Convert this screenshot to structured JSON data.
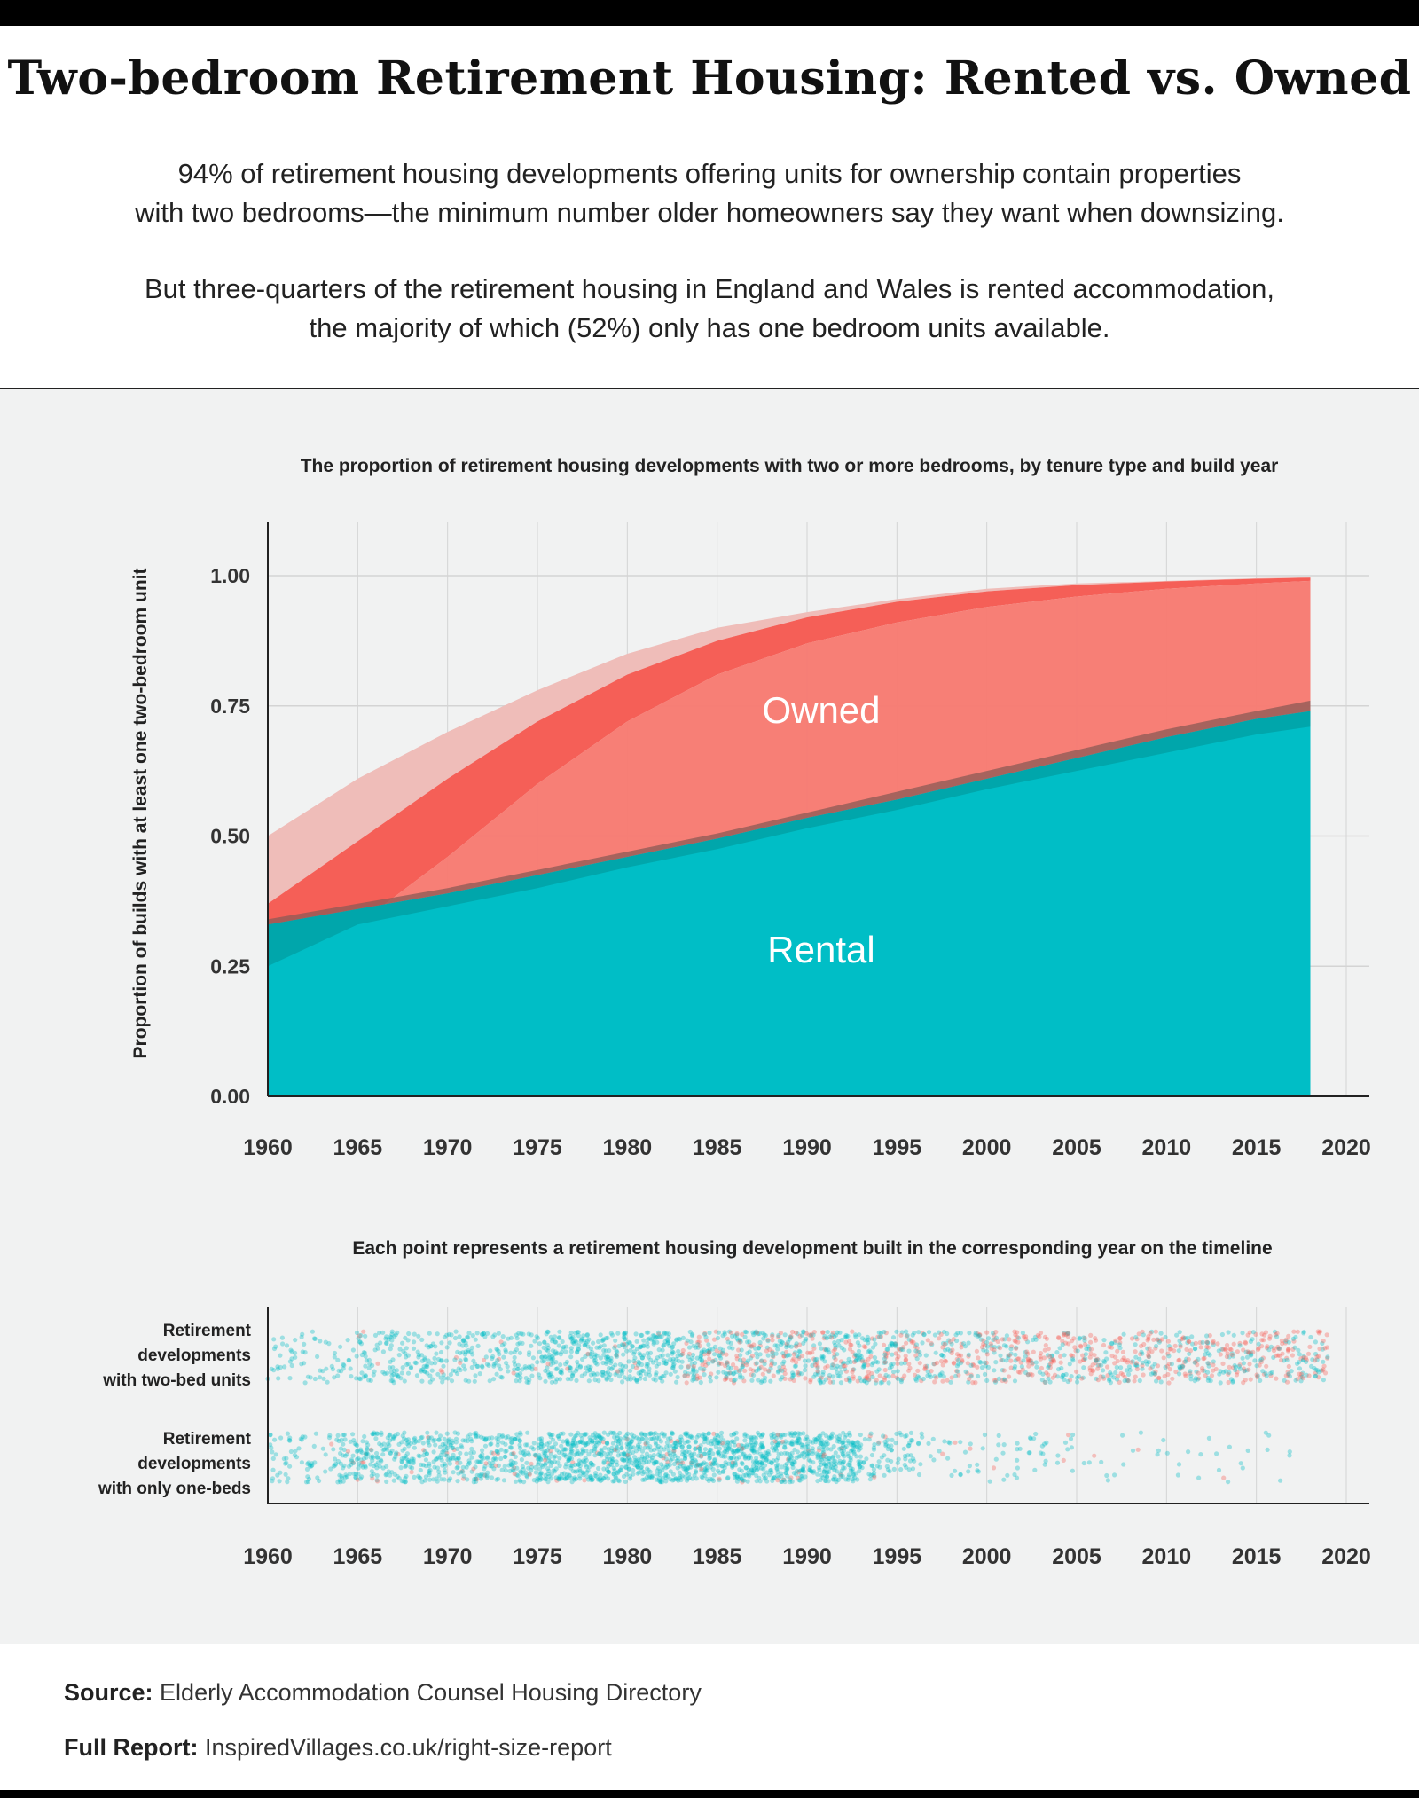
{
  "header": {
    "title": "Two-bedroom Retirement Housing: Rented vs. Owned",
    "paragraph1": [
      "94% of retirement housing developments offering units for ownership contain properties",
      "with two bedrooms—the minimum number older homeowners say they want when downsizing."
    ],
    "paragraph2": [
      "But three-quarters of the retirement housing in England and Wales is rented accommodation,",
      "the majority of which (52%) only has one bedroom units available."
    ]
  },
  "colors": {
    "owned": "#f77b72",
    "owned_band": "#f55f57",
    "owned_upper": "#efbdb9",
    "rental": "#00bec6",
    "rental_band": "#00a6ab",
    "background": "#f1f2f2"
  },
  "chart_data": [
    {
      "type": "area",
      "title": "The proportion of retirement housing developments with two or more bedrooms, by tenure type and build year",
      "xlabel": "",
      "ylabel": "Proportion of builds with at least one two-bedroom unit",
      "xlim": [
        1960,
        2020
      ],
      "ylim": [
        0,
        1.1
      ],
      "x_ticks": [
        "1960",
        "1965",
        "1970",
        "1975",
        "1980",
        "1985",
        "1990",
        "1995",
        "2000",
        "2005",
        "2010",
        "2015",
        "2020"
      ],
      "y_ticks": [
        "0.00",
        "0.25",
        "0.50",
        "0.75",
        "1.00"
      ],
      "grid": true,
      "x": [
        1960,
        1965,
        1970,
        1975,
        1980,
        1985,
        1990,
        1995,
        2000,
        2005,
        2010,
        2015,
        2018
      ],
      "series": [
        {
          "name": "Owned",
          "upper": [
            0.5,
            0.61,
            0.7,
            0.78,
            0.85,
            0.9,
            0.93,
            0.955,
            0.975,
            0.985,
            0.99,
            0.995,
            0.997
          ],
          "mean": [
            0.37,
            0.49,
            0.61,
            0.72,
            0.81,
            0.875,
            0.92,
            0.95,
            0.97,
            0.982,
            0.989,
            0.994,
            0.996
          ],
          "lower": [
            0.25,
            0.33,
            0.46,
            0.6,
            0.72,
            0.81,
            0.87,
            0.91,
            0.94,
            0.96,
            0.975,
            0.985,
            0.99
          ]
        },
        {
          "name": "Rental",
          "upper": [
            0.34,
            0.37,
            0.4,
            0.435,
            0.47,
            0.505,
            0.545,
            0.585,
            0.625,
            0.665,
            0.705,
            0.74,
            0.76
          ],
          "mean": [
            0.33,
            0.36,
            0.39,
            0.425,
            0.46,
            0.495,
            0.535,
            0.57,
            0.61,
            0.65,
            0.69,
            0.725,
            0.74
          ],
          "lower": [
            0.25,
            0.33,
            0.365,
            0.4,
            0.44,
            0.475,
            0.515,
            0.55,
            0.59,
            0.625,
            0.66,
            0.695,
            0.71
          ]
        }
      ]
    },
    {
      "type": "scatter",
      "title": "Each point represents a retirement housing development built in the corresponding year on the timeline",
      "xlim": [
        1960,
        2020
      ],
      "x_ticks": [
        "1960",
        "1965",
        "1970",
        "1975",
        "1980",
        "1985",
        "1990",
        "1995",
        "2000",
        "2005",
        "2010",
        "2015",
        "2020"
      ],
      "rows": [
        {
          "label": [
            "Retirement",
            "developments",
            "with two-bed units"
          ],
          "years": [
            1960,
            2018
          ]
        },
        {
          "label": [
            "Retirement",
            "developments",
            "with only one-beds"
          ],
          "years": [
            1960,
            2016
          ]
        }
      ]
    }
  ],
  "footer": {
    "source_label": "Source:",
    "source": "Elderly Accommodation Counsel Housing Directory",
    "report_label": "Full Report:",
    "report": "InspiredVillages.co.uk/right-size-report"
  }
}
